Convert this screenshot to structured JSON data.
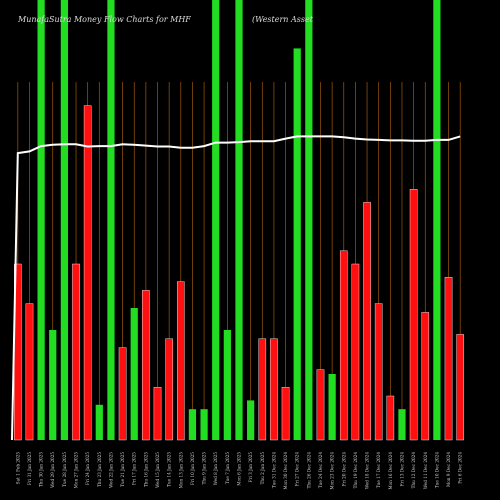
{
  "chart_data": {
    "type": "bar",
    "title_left": "MunafaSutra Money Flow Charts for MHF",
    "title_right": "(Western Asset",
    "title_right_fragment": "ern  Asse",
    "series": [
      {
        "name": "money-flow-bars",
        "values": [
          0.4,
          0.31,
          1.0,
          0.25,
          1.0,
          0.4,
          0.76,
          0.08,
          1.0,
          0.21,
          0.3,
          0.34,
          0.12,
          0.23,
          0.36,
          0.07,
          0.07,
          1.0,
          0.25,
          1.0,
          0.09,
          0.23,
          0.23,
          0.12,
          0.89,
          1.0,
          0.16,
          0.15,
          0.43,
          0.4,
          0.54,
          0.31,
          0.1,
          0.07,
          0.57,
          0.29,
          1.0,
          0.37,
          0.24
        ],
        "colors": [
          "red",
          "red",
          "green",
          "green",
          "green",
          "red",
          "red",
          "green",
          "green",
          "red",
          "green",
          "red",
          "red",
          "red",
          "red",
          "green",
          "green",
          "green",
          "green",
          "green",
          "green",
          "red",
          "red",
          "red",
          "green",
          "green",
          "red",
          "green",
          "red",
          "red",
          "red",
          "red",
          "red",
          "green",
          "red",
          "red",
          "green",
          "red",
          "red"
        ]
      },
      {
        "name": "price-line",
        "values": [
          0.652,
          0.656,
          0.668,
          0.671,
          0.672,
          0.672,
          0.667,
          0.668,
          0.668,
          0.672,
          0.671,
          0.669,
          0.667,
          0.667,
          0.664,
          0.664,
          0.668,
          0.676,
          0.676,
          0.677,
          0.679,
          0.679,
          0.679,
          0.685,
          0.69,
          0.69,
          0.69,
          0.69,
          0.688,
          0.685,
          0.683,
          0.682,
          0.681,
          0.681,
          0.68,
          0.68,
          0.682,
          0.682,
          0.69
        ]
      }
    ],
    "categories": [
      "Sat 1 Feb 2025",
      "Fri 31 Jan 2025",
      "Thu 30 Jan 2025",
      "Wed 29 Jan 2025",
      "Tue 28 Jan 2025",
      "Mon 27 Jan 2025",
      "Fri 24 Jan 2025",
      "Thu 23 Jan 2025",
      "Wed 22 Jan 2025",
      "Tue 21 Jan 2025",
      "Fri 17 Jan 2025",
      "Thu 16 Jan 2025",
      "Wed 15 Jan 2025",
      "Tue 14 Jan 2025",
      "Mon 13 Jan 2025",
      "Fri 10 Jan 2025",
      "Thu 9 Jan 2025",
      "Wed 8 Jan 2025",
      "Tue 7 Jan 2025",
      "Mon 6 Jan 2025",
      "Fri 3 Jan 2025",
      "Thu 2 Jan 2025",
      "Tue 31 Dec 2024",
      "Mon 30 Dec 2024",
      "Fri 27 Dec 2024",
      "Thu 26 Dec 2024",
      "Tue 24 Dec 2024",
      "Mon 23 Dec 2024",
      "Fri 20 Dec 2024",
      "Thu 19 Dec 2024",
      "Wed 18 Dec 2024",
      "Tue 17 Dec 2024",
      "Mon 16 Dec 2024",
      "Fri 13 Dec 2024",
      "Thu 12 Dec 2024",
      "Wed 11 Dec 2024",
      "Tue 10 Dec 2024",
      "Mon 9 Dec 2024",
      "Fri 6 Dec 2024"
    ],
    "colors": {
      "background": "#000000",
      "gridline": "#a0580c",
      "up_bar": "#22dd22",
      "down_bar": "#ff1010",
      "price_line": "#ffffff",
      "bar_edge": "#ffffff"
    },
    "grid": true,
    "legend": "none"
  }
}
